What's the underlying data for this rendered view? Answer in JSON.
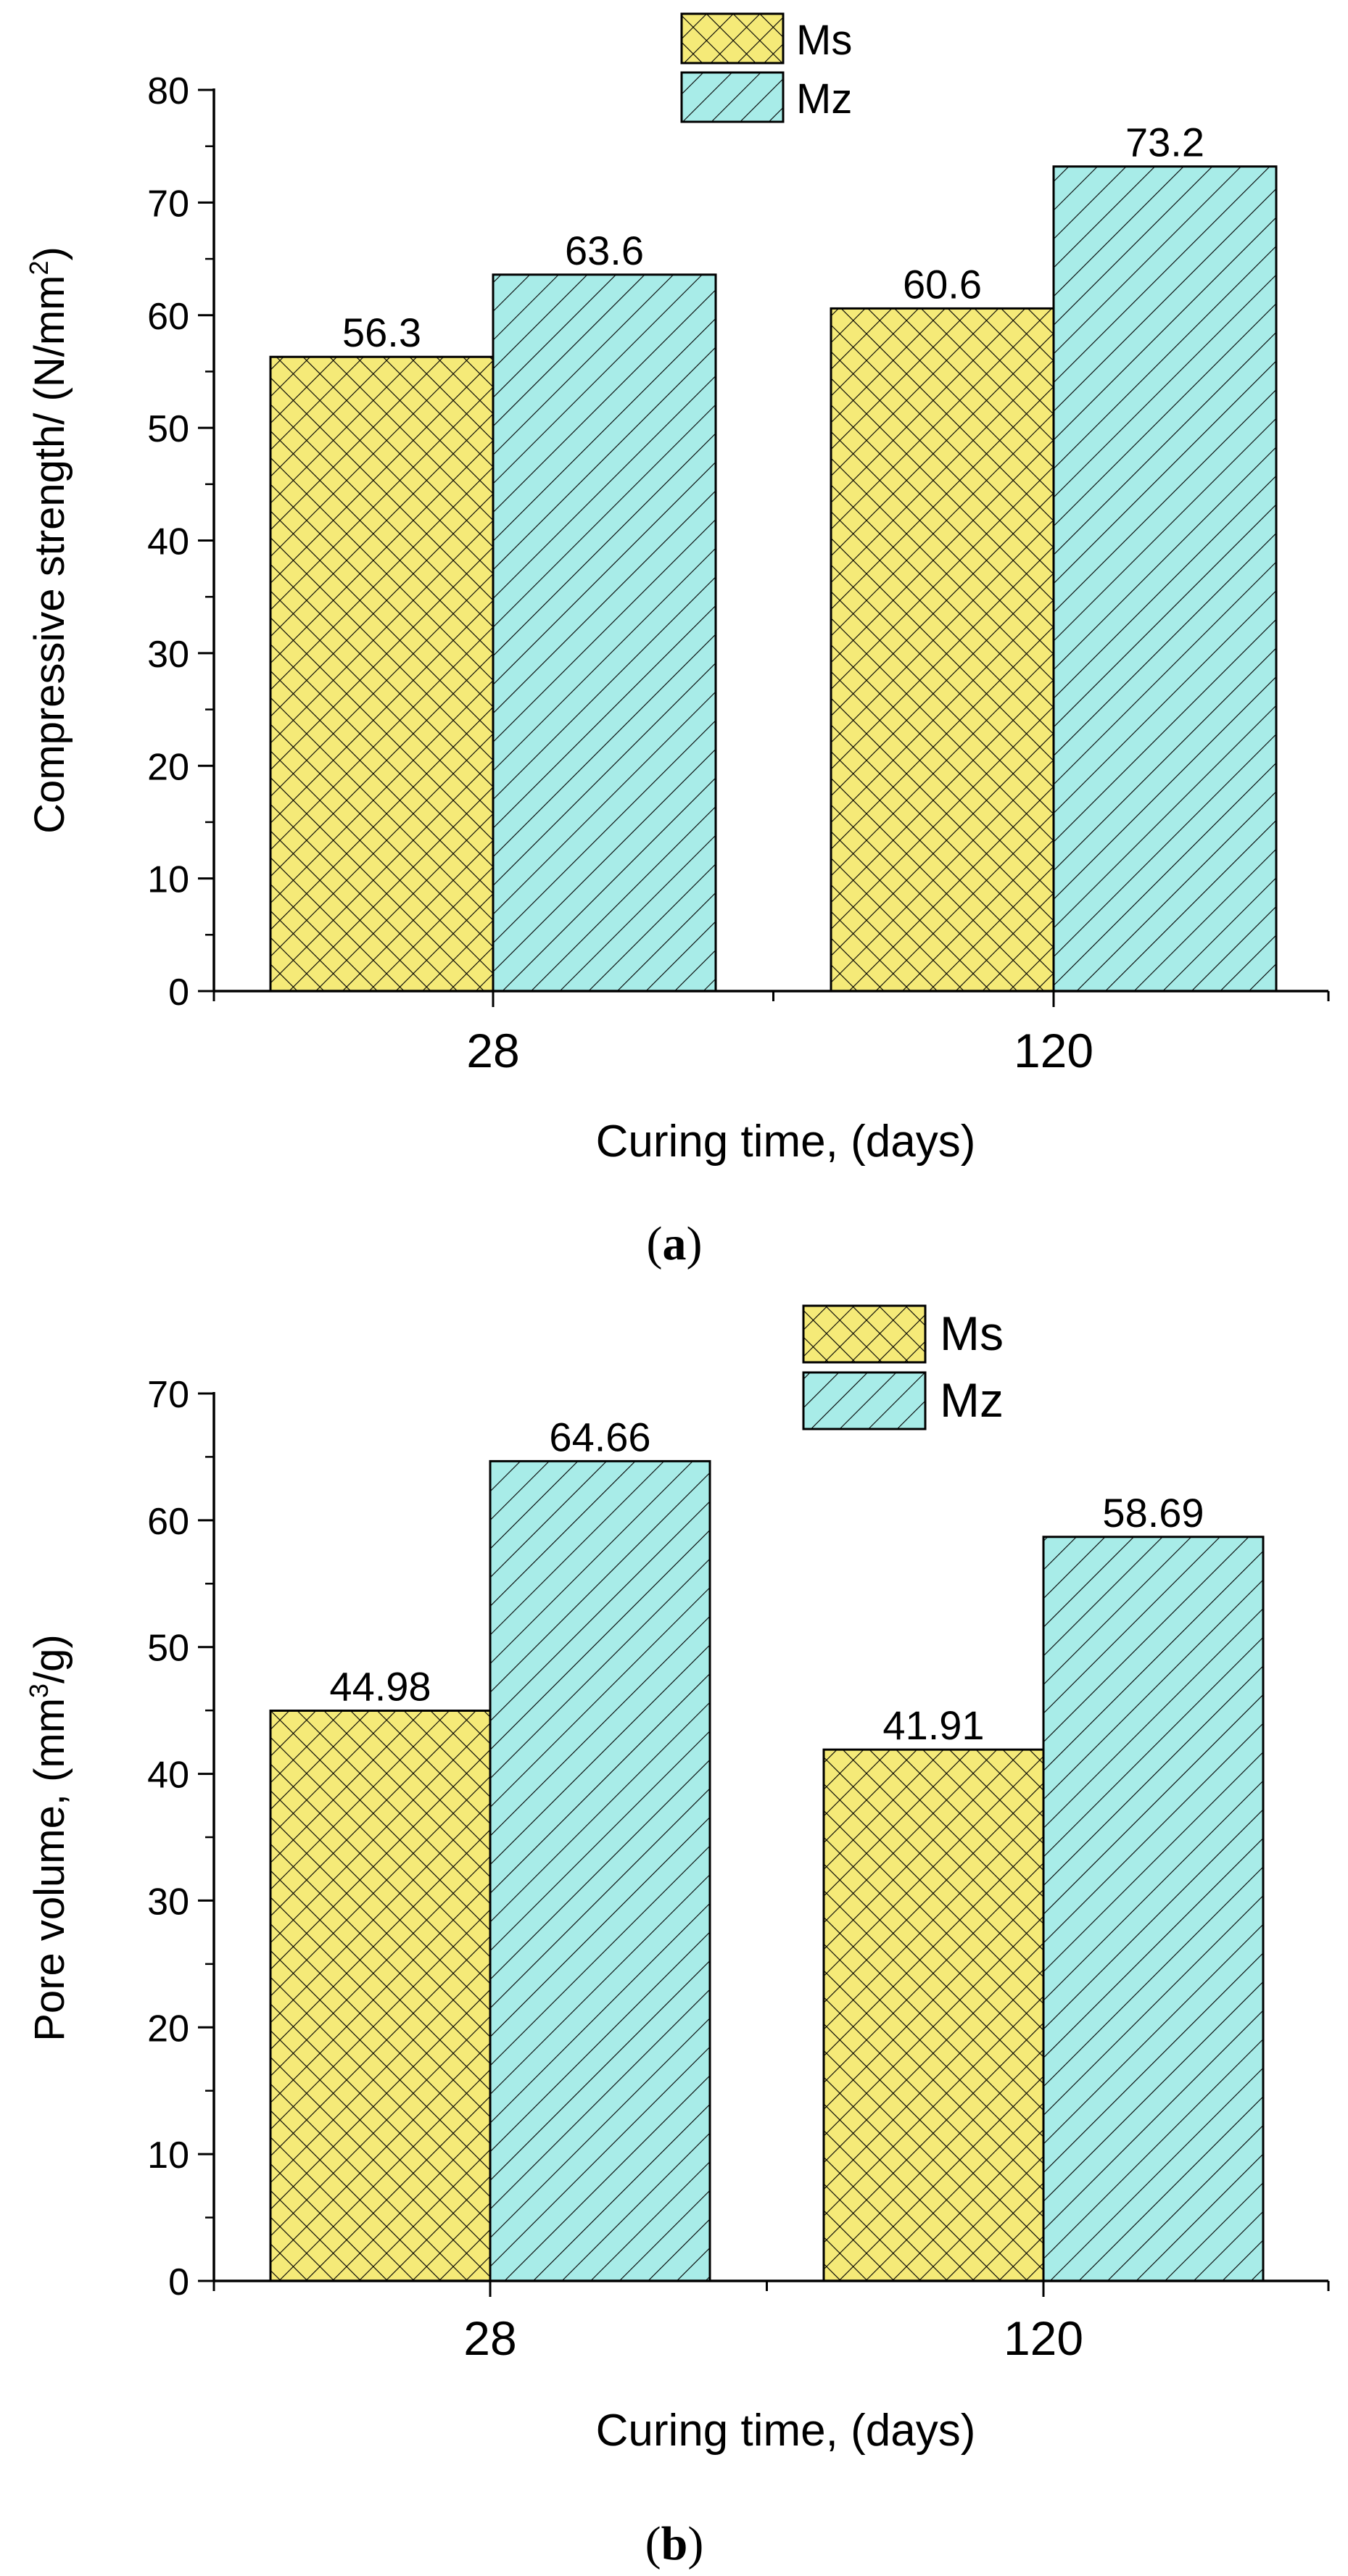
{
  "colors": {
    "ms_fill": "#f5ea78",
    "mz_fill": "#a8ece8",
    "stroke": "#000000",
    "background": "#ffffff"
  },
  "chart_data": [
    {
      "type": "bar",
      "panel": "a",
      "caption": "a",
      "categories": [
        "28",
        "120"
      ],
      "series": [
        {
          "name": "Ms",
          "values": [
            56.3,
            60.6
          ],
          "labels": [
            "56.3",
            "60.6"
          ],
          "pattern": "crosshatch"
        },
        {
          "name": "Mz",
          "values": [
            63.6,
            73.2
          ],
          "labels": [
            "63.6",
            "73.2"
          ],
          "pattern": "diagonal"
        }
      ],
      "xlabel": "Curing time, (days)",
      "ylabel_main": "Compressive strength/ (N/mm",
      "ylabel_sup": "2",
      "ylabel_end": ")",
      "ylim": [
        0,
        80
      ],
      "yticks": [
        0,
        10,
        20,
        30,
        40,
        50,
        60,
        70,
        80
      ],
      "ytick_labels": [
        "0",
        "10",
        "20",
        "30",
        "40",
        "50",
        "60",
        "70",
        "80"
      ],
      "legend": [
        "Ms",
        "Mz"
      ],
      "legend_position": "top-center",
      "grid": false
    },
    {
      "type": "bar",
      "panel": "b",
      "caption": "b",
      "categories": [
        "28",
        "120"
      ],
      "series": [
        {
          "name": "Ms",
          "values": [
            44.98,
            41.91
          ],
          "labels": [
            "44.98",
            "41.91"
          ],
          "pattern": "crosshatch"
        },
        {
          "name": "Mz",
          "values": [
            64.66,
            58.69
          ],
          "labels": [
            "64.66",
            "58.69"
          ],
          "pattern": "diagonal"
        }
      ],
      "xlabel": "Curing time, (days)",
      "ylabel_main": "Pore volume, (mm",
      "ylabel_sup": "3",
      "ylabel_end": "/g)",
      "ylim": [
        0,
        70
      ],
      "yticks": [
        0,
        10,
        20,
        30,
        40,
        50,
        60,
        70
      ],
      "ytick_labels": [
        "0",
        "10",
        "20",
        "30",
        "40",
        "50",
        "60",
        "70"
      ],
      "legend": [
        "Ms",
        "Mz"
      ],
      "legend_position": "top-center",
      "grid": false
    }
  ]
}
